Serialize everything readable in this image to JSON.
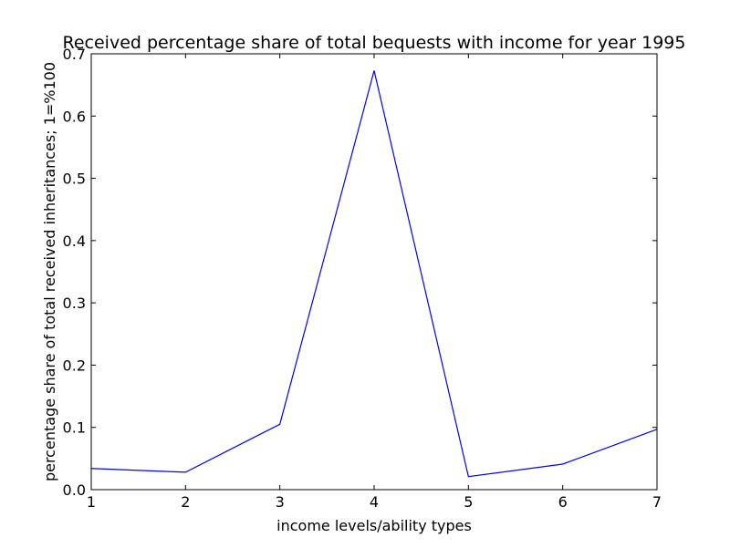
{
  "chart_data": {
    "type": "line",
    "title": "Received percentage share of total bequests with income for year 1995",
    "xlabel": "income levels/ability types",
    "ylabel": "percentage share of total received inheritances; 1=%100",
    "x": [
      1,
      2,
      3,
      4,
      5,
      6,
      7
    ],
    "series": [
      {
        "values": [
          0.034,
          0.028,
          0.105,
          0.673,
          0.021,
          0.041,
          0.097
        ],
        "color": "#0000ff"
      }
    ],
    "xlim": [
      1,
      7
    ],
    "ylim": [
      0.0,
      0.7
    ],
    "xticks": [
      1,
      2,
      3,
      4,
      5,
      6,
      7
    ],
    "yticks": [
      0.0,
      0.1,
      0.2,
      0.3,
      0.4,
      0.5,
      0.6,
      0.7
    ],
    "xtick_labels": [
      "1",
      "2",
      "3",
      "4",
      "5",
      "6",
      "7"
    ],
    "ytick_labels": [
      "0.0",
      "0.1",
      "0.2",
      "0.3",
      "0.4",
      "0.5",
      "0.6",
      "0.7"
    ],
    "grid": false,
    "legend": "none"
  }
}
